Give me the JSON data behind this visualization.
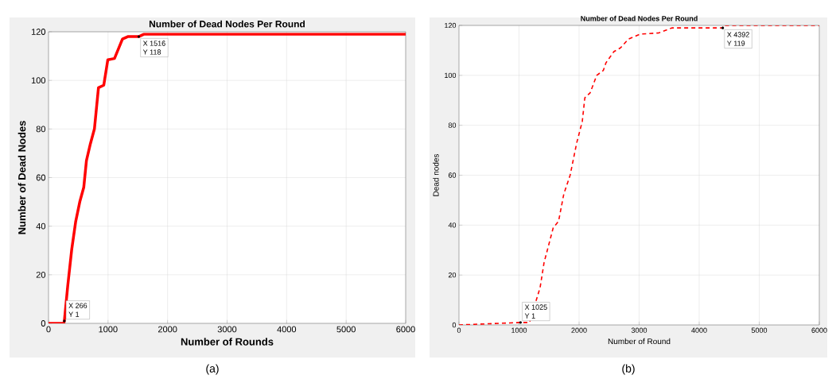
{
  "chart_data": [
    {
      "type": "line",
      "title": "Number of Dead Nodes Per Round",
      "xlabel": "Number of Rounds",
      "ylabel": "Number of Dead Nodes",
      "x": [
        0,
        256,
        266,
        323,
        390,
        457,
        525,
        592,
        637,
        704,
        771,
        839,
        928,
        996,
        1108,
        1175,
        1242,
        1332,
        1516,
        1600,
        6000
      ],
      "values": [
        0,
        0,
        1,
        15.5,
        30.5,
        42,
        50,
        56,
        67,
        74,
        80,
        97,
        98,
        108.5,
        109,
        113,
        117,
        118,
        118,
        119,
        119
      ],
      "color": "#ff0000",
      "line_style": "solid",
      "xlim": [
        0,
        6000
      ],
      "ylim": [
        0,
        120
      ],
      "xticks": [
        0,
        1000,
        2000,
        3000,
        4000,
        5000,
        6000
      ],
      "yticks": [
        0,
        20,
        40,
        60,
        80,
        100,
        120
      ],
      "grid": true,
      "annotations": [
        {
          "text": "X 266",
          "x": 266,
          "y": 1
        },
        {
          "text": "Y 1",
          "x": 266,
          "y": 1
        },
        {
          "text": "X 1516",
          "x": 1516,
          "y": 118
        },
        {
          "text": "Y 118",
          "x": 1516,
          "y": 118
        },
        "(a)"
      ]
    },
    {
      "type": "line",
      "title": "Number of Dead Nodes Per Round",
      "xlabel": "Number of Round",
      "ylabel": "Dead nodes",
      "x": [
        0,
        1025,
        1175,
        1351,
        1417,
        1570,
        1658,
        1746,
        1851,
        1961,
        2053,
        2096,
        2184,
        2294,
        2404,
        2447,
        2579,
        2689,
        2820,
        3018,
        3325,
        3544,
        4392,
        4400,
        6000
      ],
      "values": [
        0,
        1,
        1,
        15,
        25,
        39,
        41.5,
        52.5,
        60,
        73,
        81.5,
        91,
        93,
        100,
        102,
        105,
        109.5,
        111,
        114.5,
        116.5,
        117,
        119,
        119,
        120,
        120
      ],
      "color": "#ff0000",
      "line_style": "dashed",
      "xlim": [
        0,
        6000
      ],
      "ylim": [
        0,
        120
      ],
      "xticks": [
        0,
        1000,
        2000,
        3000,
        4000,
        5000,
        6000
      ],
      "yticks": [
        0,
        20,
        40,
        60,
        80,
        100,
        120
      ],
      "grid": true,
      "annotations": [
        {
          "text": "X 1025",
          "x": 1025,
          "y": 1
        },
        {
          "text": "Y 1",
          "x": 1025,
          "y": 1
        },
        {
          "text": "X 4392",
          "x": 4392,
          "y": 119
        },
        {
          "text": "Y 119",
          "x": 4392,
          "y": 119
        },
        "(b)"
      ]
    }
  ]
}
